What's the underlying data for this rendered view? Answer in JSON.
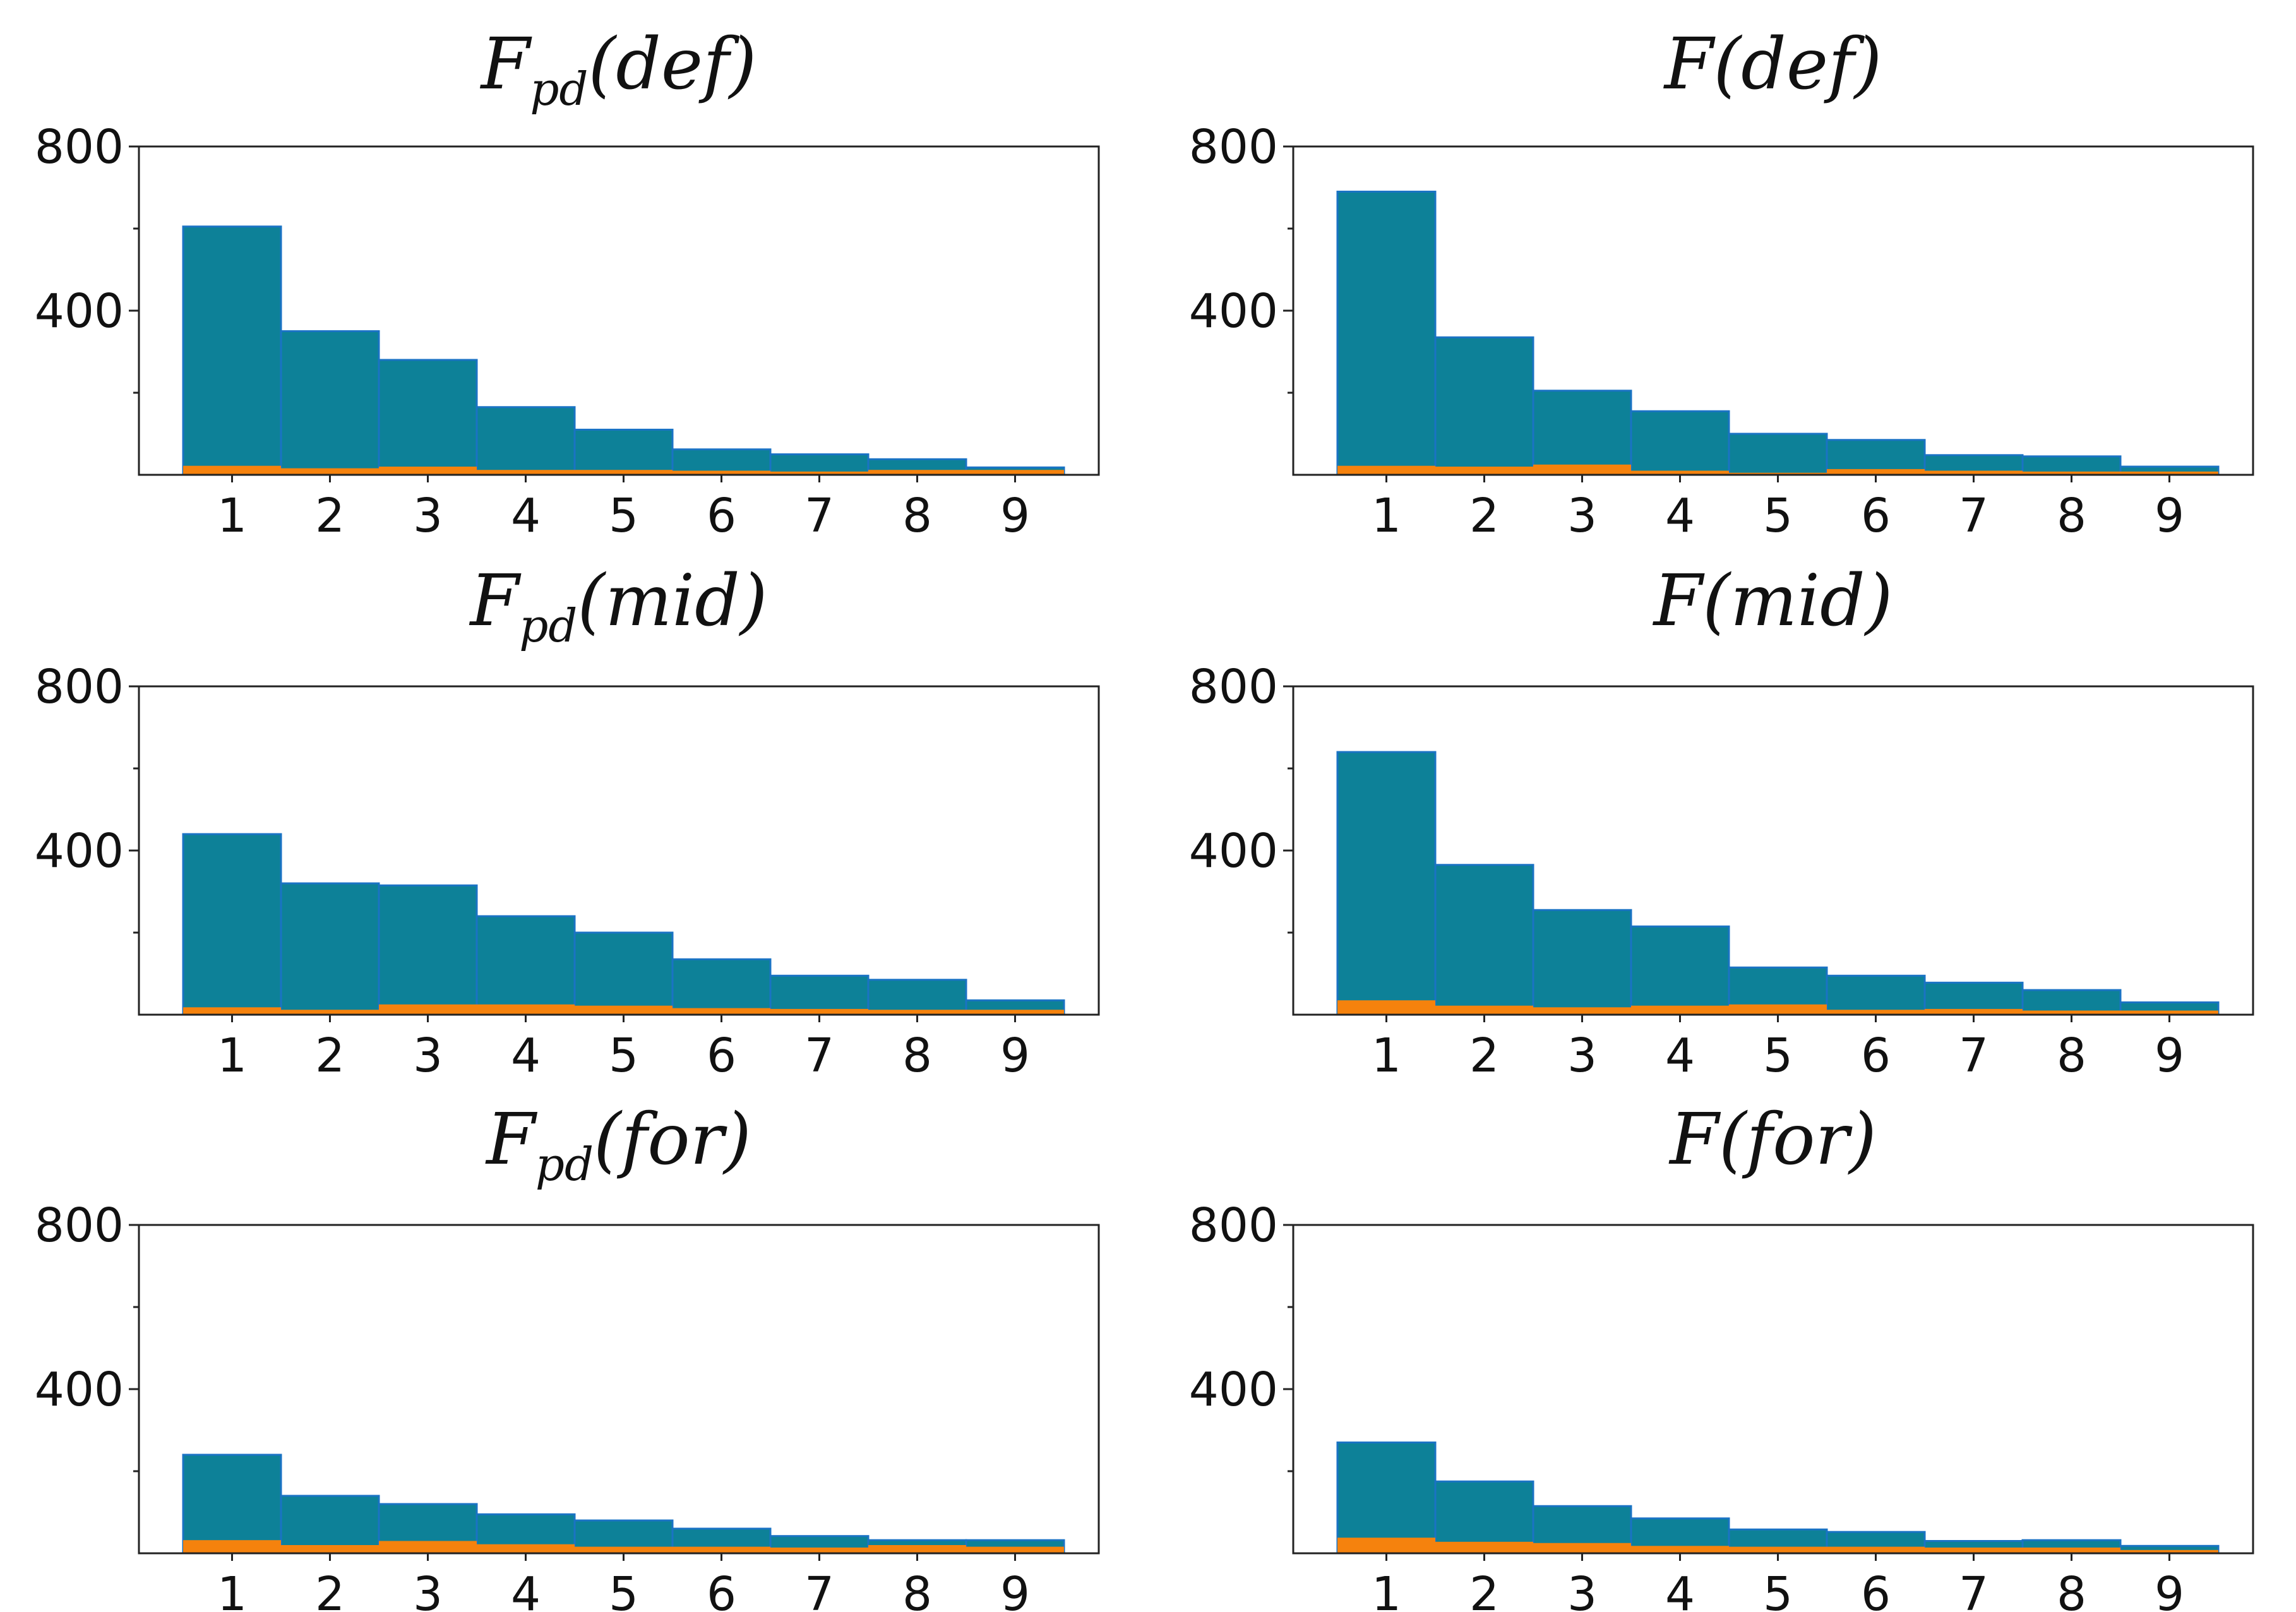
{
  "colors": {
    "main": "#0d8198",
    "edge": "#1a73c4",
    "minor": "#f5820d"
  },
  "chart_data": [
    {
      "type": "bar",
      "title": "F",
      "title_sub": "pd",
      "title_arg": "(def)",
      "categories": [
        "1",
        "2",
        "3",
        "4",
        "5",
        "6",
        "7",
        "8",
        "9"
      ],
      "series": [
        {
          "values": [
            605,
            350,
            280,
            165,
            110,
            62,
            50,
            38,
            18
          ]
        },
        {
          "values": [
            22,
            16,
            20,
            12,
            12,
            10,
            8,
            12,
            12
          ]
        }
      ],
      "yticks": [
        "400",
        "800"
      ],
      "ylim": [
        0,
        800
      ]
    },
    {
      "type": "bar",
      "title": "F",
      "title_sub": "",
      "title_arg": "(def)",
      "categories": [
        "1",
        "2",
        "3",
        "4",
        "5",
        "6",
        "7",
        "8",
        "9"
      ],
      "series": [
        {
          "values": [
            690,
            335,
            205,
            155,
            100,
            85,
            48,
            45,
            20
          ]
        },
        {
          "values": [
            22,
            20,
            25,
            10,
            5,
            14,
            10,
            8,
            8
          ]
        }
      ],
      "yticks": [
        "400",
        "800"
      ],
      "ylim": [
        0,
        800
      ]
    },
    {
      "type": "bar",
      "title": "F",
      "title_sub": "pd",
      "title_arg": "(mid)",
      "categories": [
        "1",
        "2",
        "3",
        "4",
        "5",
        "6",
        "7",
        "8",
        "9"
      ],
      "series": [
        {
          "values": [
            440,
            320,
            315,
            240,
            200,
            135,
            95,
            85,
            35
          ]
        },
        {
          "values": [
            18,
            12,
            25,
            25,
            22,
            16,
            14,
            12,
            12
          ]
        }
      ],
      "yticks": [
        "400",
        "800"
      ],
      "ylim": [
        0,
        800
      ]
    },
    {
      "type": "bar",
      "title": "F",
      "title_sub": "",
      "title_arg": "(mid)",
      "categories": [
        "1",
        "2",
        "3",
        "4",
        "5",
        "6",
        "7",
        "8",
        "9"
      ],
      "series": [
        {
          "values": [
            640,
            365,
            255,
            215,
            115,
            95,
            78,
            60,
            30
          ]
        },
        {
          "values": [
            35,
            22,
            18,
            22,
            25,
            12,
            14,
            10,
            10
          ]
        }
      ],
      "yticks": [
        "400",
        "800"
      ],
      "ylim": [
        0,
        800
      ]
    },
    {
      "type": "bar",
      "title": "F",
      "title_sub": "pd",
      "title_arg": "(for)",
      "categories": [
        "1",
        "2",
        "3",
        "4",
        "5",
        "6",
        "7",
        "8",
        "9"
      ],
      "series": [
        {
          "values": [
            240,
            140,
            120,
            95,
            80,
            60,
            42,
            32,
            32
          ]
        },
        {
          "values": [
            32,
            20,
            30,
            22,
            16,
            16,
            14,
            20,
            16
          ]
        }
      ],
      "yticks": [
        "400",
        "800"
      ],
      "ylim": [
        0,
        800
      ]
    },
    {
      "type": "bar",
      "title": "F",
      "title_sub": "",
      "title_arg": "(for)",
      "categories": [
        "1",
        "2",
        "3",
        "4",
        "5",
        "6",
        "7",
        "8",
        "9"
      ],
      "series": [
        {
          "values": [
            270,
            175,
            115,
            85,
            58,
            52,
            30,
            32,
            18
          ]
        },
        {
          "values": [
            38,
            28,
            25,
            18,
            16,
            16,
            14,
            14,
            8
          ]
        }
      ],
      "yticks": [
        "400",
        "800"
      ],
      "ylim": [
        0,
        800
      ]
    }
  ]
}
